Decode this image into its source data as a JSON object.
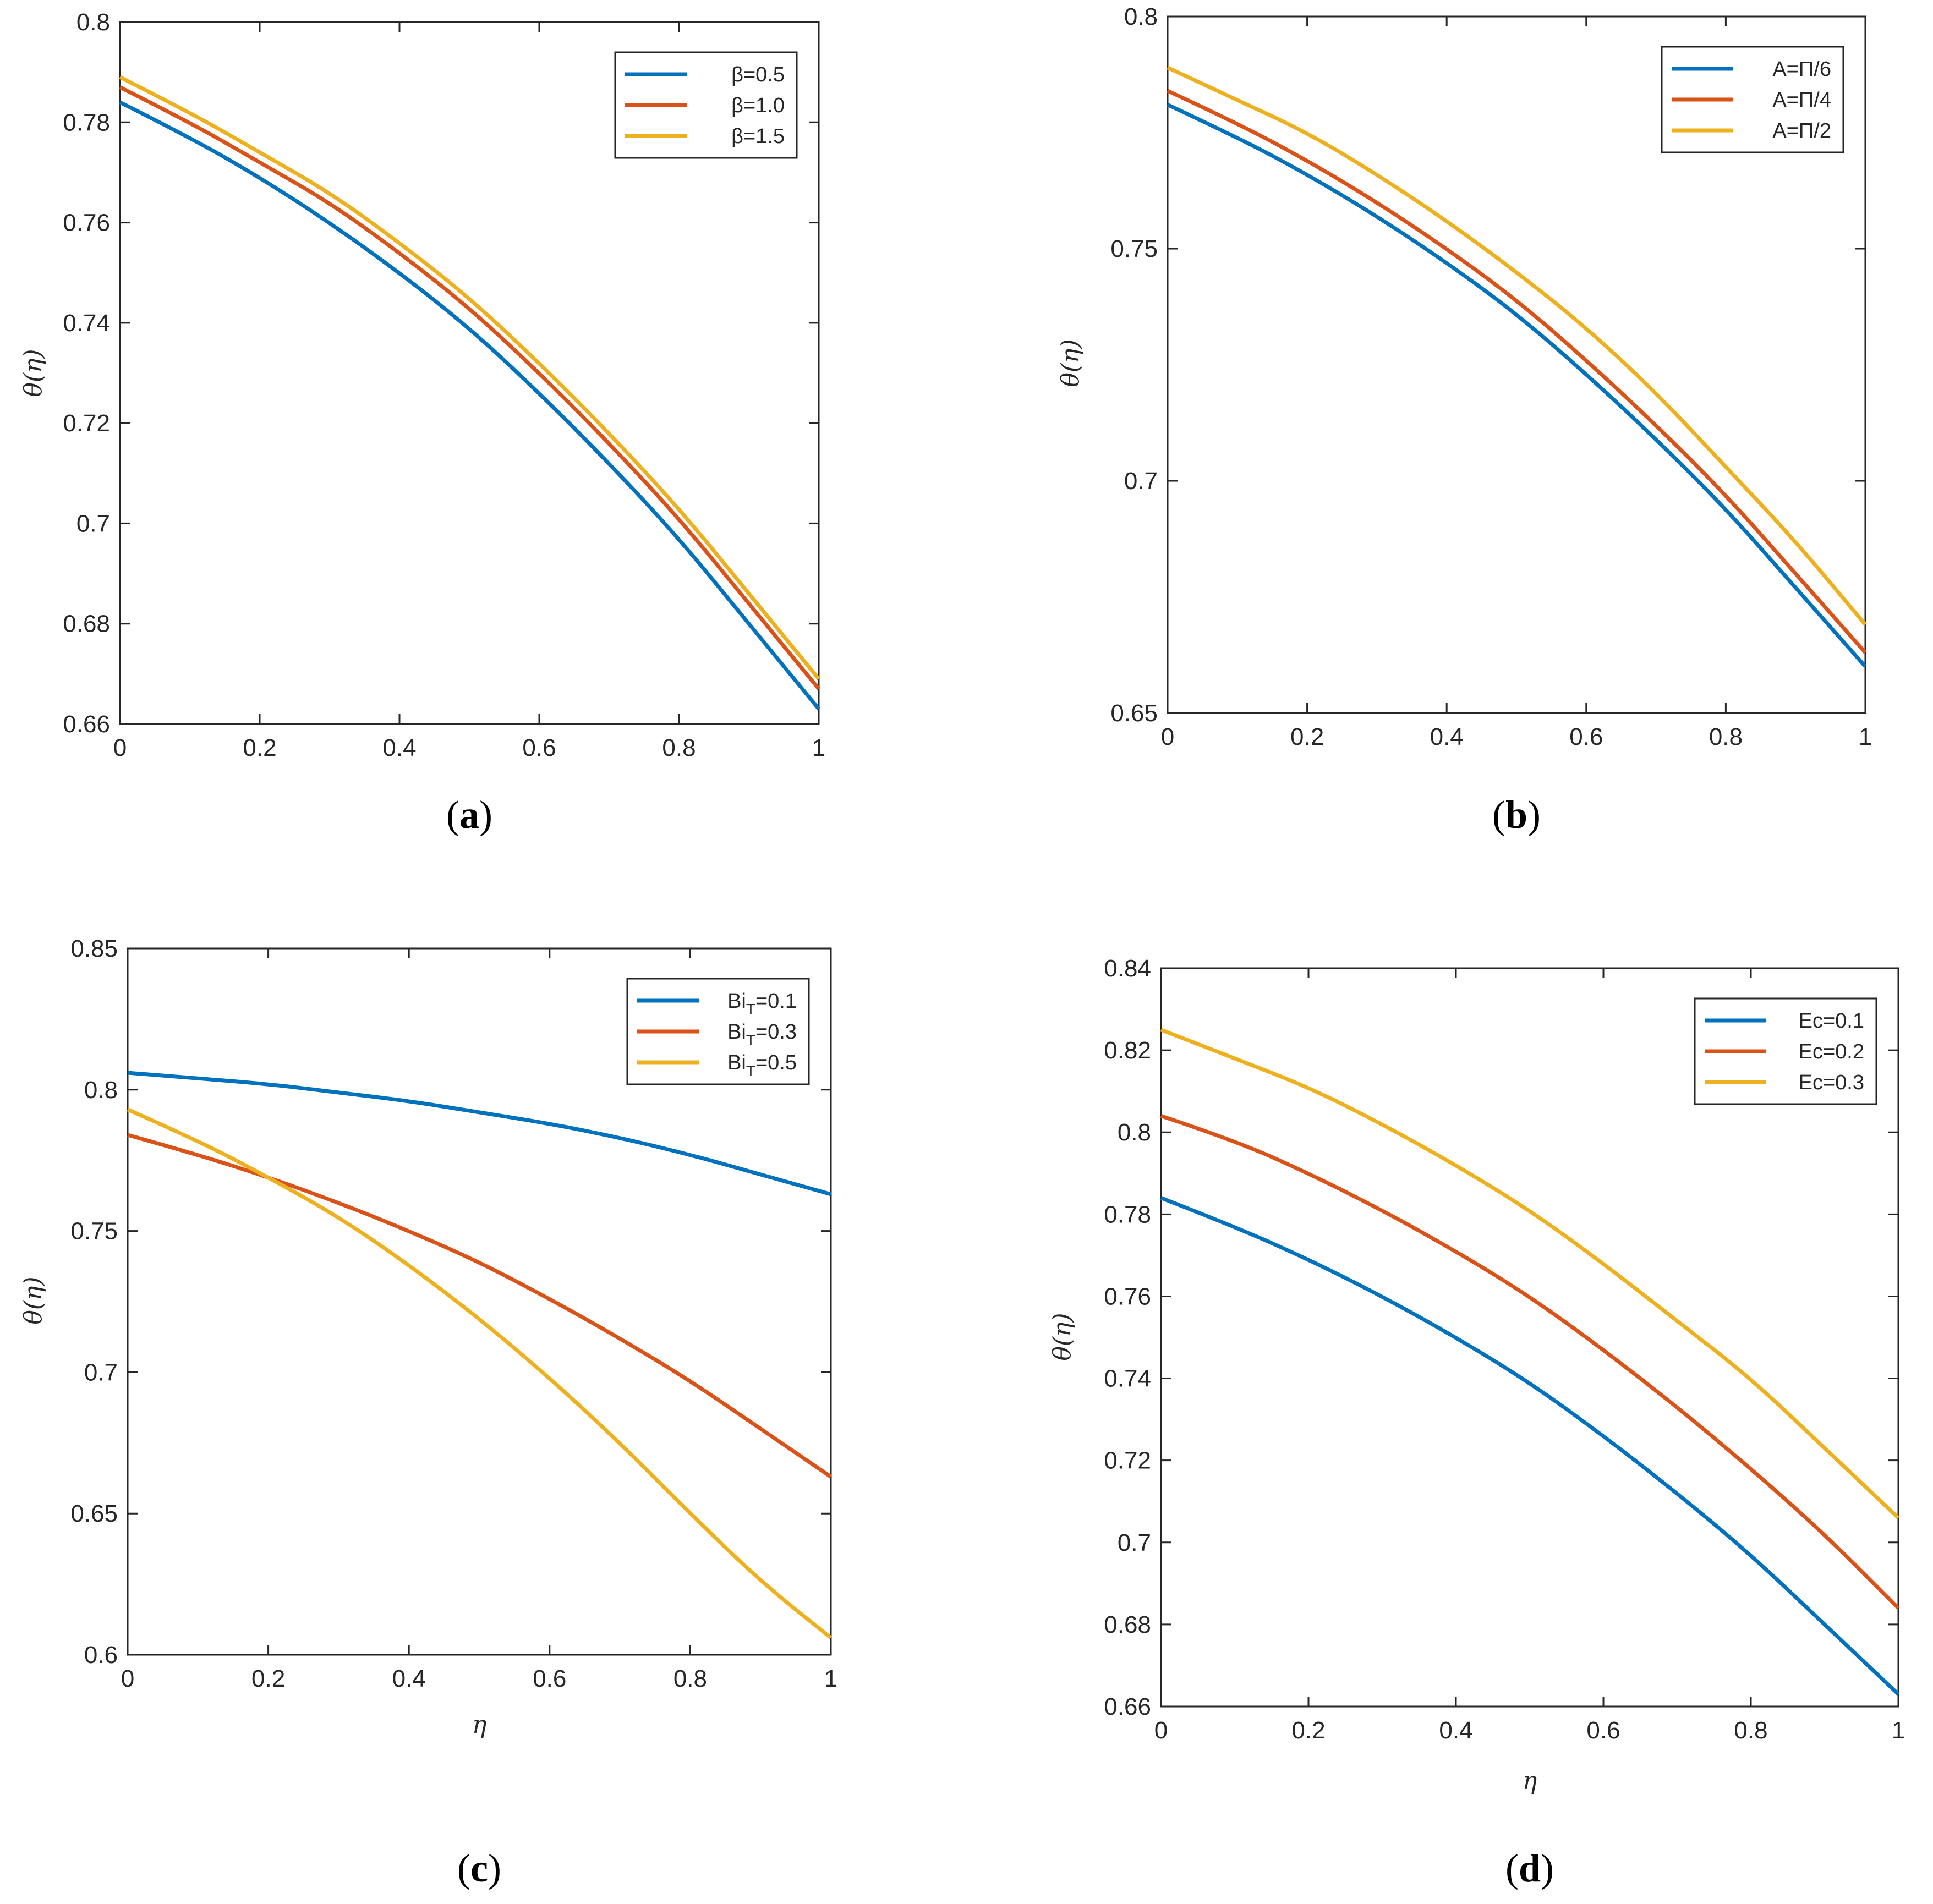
{
  "chart_data": [
    {
      "type": "line",
      "panel": "a",
      "caption_open": "(",
      "caption_letter": "a",
      "caption_close": ")",
      "title": "",
      "xlabel": "",
      "ylabel": "θ(η)",
      "xlim": [
        0,
        1
      ],
      "ylim": [
        0.66,
        0.8
      ],
      "xticks": [
        0,
        0.2,
        0.4,
        0.6,
        0.8,
        1
      ],
      "xtick_labels": [
        "0",
        "0.2",
        "0.4",
        "0.6",
        "0.8",
        "1"
      ],
      "yticks": [
        0.66,
        0.68,
        0.7,
        0.72,
        0.74,
        0.76,
        0.78,
        0.8
      ],
      "ytick_labels": [
        "0.66",
        "0.68",
        "0.7",
        "0.72",
        "0.74",
        "0.76",
        "0.78",
        "0.8"
      ],
      "legend_position": "top-right",
      "x": [
        0,
        0.1,
        0.2,
        0.3,
        0.4,
        0.5,
        0.6,
        0.7,
        0.8,
        0.9,
        1.0
      ],
      "series": [
        {
          "name": "β=0.5",
          "color": "#0072BD",
          "values": [
            0.784,
            0.777,
            0.769,
            0.76,
            0.75,
            0.739,
            0.726,
            0.712,
            0.697,
            0.68,
            0.663
          ]
        },
        {
          "name": "β=1.0",
          "color": "#D95319",
          "values": [
            0.787,
            0.78,
            0.772,
            0.764,
            0.754,
            0.743,
            0.73,
            0.716,
            0.701,
            0.684,
            0.667
          ]
        },
        {
          "name": "β=1.5",
          "color": "#EDB120",
          "values": [
            0.789,
            0.782,
            0.774,
            0.766,
            0.756,
            0.745,
            0.732,
            0.718,
            0.703,
            0.686,
            0.669
          ]
        }
      ]
    },
    {
      "type": "line",
      "panel": "b",
      "caption_open": "(",
      "caption_letter": "b",
      "caption_close": ")",
      "title": "",
      "xlabel": "",
      "ylabel": "θ(η)",
      "xlim": [
        0,
        1
      ],
      "ylim": [
        0.65,
        0.8
      ],
      "xticks": [
        0,
        0.2,
        0.4,
        0.6,
        0.8,
        1
      ],
      "xtick_labels": [
        "0",
        "0.2",
        "0.4",
        "0.6",
        "0.8",
        "1"
      ],
      "yticks": [
        0.65,
        0.7,
        0.75,
        0.8
      ],
      "ytick_labels": [
        "0.65",
        "0.7",
        "0.75",
        "0.8"
      ],
      "legend_position": "top-right",
      "x": [
        0,
        0.1,
        0.2,
        0.3,
        0.4,
        0.5,
        0.6,
        0.7,
        0.8,
        0.9,
        1.0
      ],
      "series": [
        {
          "name": "A=Π/6",
          "color": "#0072BD",
          "values": [
            0.781,
            0.774,
            0.766,
            0.757,
            0.747,
            0.736,
            0.723,
            0.709,
            0.694,
            0.677,
            0.66
          ]
        },
        {
          "name": "A=Π/4",
          "color": "#D95319",
          "values": [
            0.784,
            0.777,
            0.769,
            0.76,
            0.75,
            0.739,
            0.726,
            0.712,
            0.697,
            0.68,
            0.663
          ]
        },
        {
          "name": "A=Π/2",
          "color": "#EDB120",
          "values": [
            0.789,
            0.782,
            0.775,
            0.766,
            0.756,
            0.745,
            0.733,
            0.719,
            0.703,
            0.687,
            0.669
          ]
        }
      ]
    },
    {
      "type": "line",
      "panel": "c",
      "caption_open": "(",
      "caption_letter": "c",
      "caption_close": ")",
      "title": "",
      "xlabel": "η",
      "ylabel": "θ(η)",
      "xlim": [
        0,
        1
      ],
      "ylim": [
        0.6,
        0.85
      ],
      "xticks": [
        0,
        0.2,
        0.4,
        0.6,
        0.8,
        1
      ],
      "xtick_labels": [
        "0",
        "0.2",
        "0.4",
        "0.6",
        "0.8",
        "1"
      ],
      "yticks": [
        0.6,
        0.65,
        0.7,
        0.75,
        0.8,
        0.85
      ],
      "ytick_labels": [
        "0.6",
        "0.65",
        "0.7",
        "0.75",
        "0.8",
        "0.85"
      ],
      "legend_position": "top-right",
      "x": [
        0,
        0.1,
        0.2,
        0.3,
        0.4,
        0.5,
        0.6,
        0.7,
        0.8,
        0.9,
        1.0
      ],
      "series": [
        {
          "name": "Bi",
          "sub": "T",
          "suffix": "=0.1",
          "color": "#0072BD",
          "values": [
            0.806,
            0.804,
            0.802,
            0.799,
            0.796,
            0.792,
            0.788,
            0.783,
            0.777,
            0.77,
            0.763
          ]
        },
        {
          "name": "Bi",
          "sub": "T",
          "suffix": "=0.3",
          "color": "#D95319",
          "values": [
            0.784,
            0.777,
            0.769,
            0.76,
            0.75,
            0.739,
            0.726,
            0.712,
            0.697,
            0.68,
            0.663
          ]
        },
        {
          "name": "Bi",
          "sub": "T",
          "suffix": "=0.5",
          "color": "#EDB120",
          "values": [
            0.793,
            0.782,
            0.769,
            0.755,
            0.738,
            0.719,
            0.698,
            0.675,
            0.65,
            0.626,
            0.606
          ]
        }
      ]
    },
    {
      "type": "line",
      "panel": "d",
      "caption_open": "(",
      "caption_letter": "d",
      "caption_close": ")",
      "title": "",
      "xlabel": "η",
      "ylabel": "θ(η)",
      "xlim": [
        0,
        1
      ],
      "ylim": [
        0.66,
        0.84
      ],
      "xticks": [
        0,
        0.2,
        0.4,
        0.6,
        0.8,
        1
      ],
      "xtick_labels": [
        "0",
        "0.2",
        "0.4",
        "0.6",
        "0.8",
        "1"
      ],
      "yticks": [
        0.66,
        0.68,
        0.7,
        0.72,
        0.74,
        0.76,
        0.78,
        0.8,
        0.82,
        0.84
      ],
      "ytick_labels": [
        "0.66",
        "0.68",
        "0.7",
        "0.72",
        "0.74",
        "0.76",
        "0.78",
        "0.8",
        "0.82",
        "0.84"
      ],
      "legend_position": "top-right",
      "x": [
        0,
        0.1,
        0.2,
        0.3,
        0.4,
        0.5,
        0.6,
        0.7,
        0.8,
        0.9,
        1.0
      ],
      "series": [
        {
          "name": "Ec=0.1",
          "color": "#0072BD",
          "values": [
            0.784,
            0.777,
            0.769,
            0.76,
            0.75,
            0.739,
            0.726,
            0.712,
            0.697,
            0.68,
            0.663
          ]
        },
        {
          "name": "Ec=0.2",
          "color": "#D95319",
          "values": [
            0.804,
            0.798,
            0.79,
            0.781,
            0.771,
            0.76,
            0.747,
            0.733,
            0.718,
            0.702,
            0.684
          ]
        },
        {
          "name": "Ec=0.3",
          "color": "#EDB120",
          "values": [
            0.825,
            0.818,
            0.811,
            0.802,
            0.792,
            0.781,
            0.768,
            0.754,
            0.74,
            0.723,
            0.706
          ]
        }
      ]
    }
  ]
}
